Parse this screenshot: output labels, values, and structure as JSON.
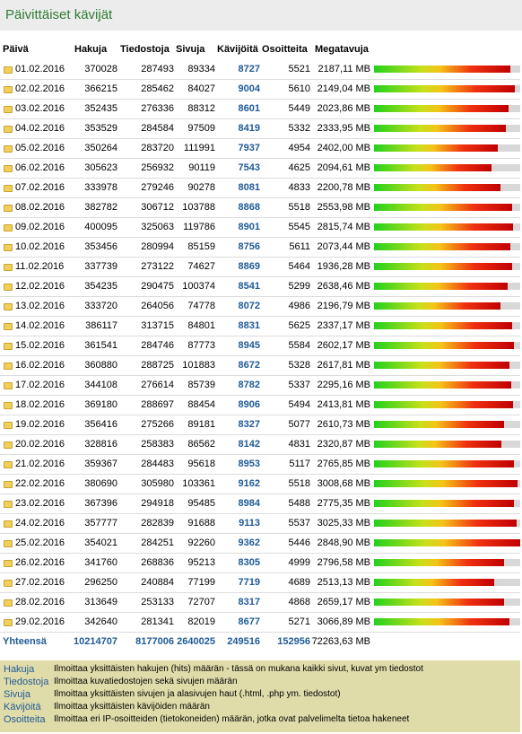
{
  "title": "Päivittäiset kävijät",
  "table": {
    "header": [
      "Päivä",
      "Hakuja",
      "Tiedostoja",
      "Sivuja",
      "Kävijöitä",
      "Osoitteita",
      "Megatavuja"
    ],
    "rows": [
      [
        "01.02.2016",
        370028,
        287493,
        89334,
        8727,
        5521,
        "2187,11 MB"
      ],
      [
        "02.02.2016",
        366215,
        285462,
        84027,
        9004,
        5610,
        "2149,04 MB"
      ],
      [
        "03.02.2016",
        352435,
        276336,
        88312,
        8601,
        5449,
        "2023,86 MB"
      ],
      [
        "04.02.2016",
        353529,
        284584,
        97509,
        8419,
        5332,
        "2333,95 MB"
      ],
      [
        "05.02.2016",
        350264,
        283720,
        111991,
        7937,
        4954,
        "2402,00 MB"
      ],
      [
        "06.02.2016",
        305623,
        256932,
        90119,
        7543,
        4625,
        "2094,61 MB"
      ],
      [
        "07.02.2016",
        333978,
        279246,
        90278,
        8081,
        4833,
        "2200,78 MB"
      ],
      [
        "08.02.2016",
        382782,
        306712,
        103788,
        8868,
        5518,
        "2553,98 MB"
      ],
      [
        "09.02.2016",
        400095,
        325063,
        119786,
        8901,
        5545,
        "2815,74 MB"
      ],
      [
        "10.02.2016",
        353456,
        280994,
        85159,
        8756,
        5611,
        "2073,44 MB"
      ],
      [
        "11.02.2016",
        337739,
        273122,
        74627,
        8869,
        5464,
        "1936,28 MB"
      ],
      [
        "12.02.2016",
        354235,
        290475,
        100374,
        8541,
        5299,
        "2638,46 MB"
      ],
      [
        "13.02.2016",
        333720,
        264056,
        74778,
        8072,
        4986,
        "2196,79 MB"
      ],
      [
        "14.02.2016",
        386117,
        313715,
        84801,
        8831,
        5625,
        "2337,17 MB"
      ],
      [
        "15.02.2016",
        361541,
        284746,
        87773,
        8945,
        5584,
        "2602,17 MB"
      ],
      [
        "16.02.2016",
        360880,
        288725,
        101883,
        8672,
        5328,
        "2617,81 MB"
      ],
      [
        "17.02.2016",
        344108,
        276614,
        85739,
        8782,
        5337,
        "2295,16 MB"
      ],
      [
        "18.02.2016",
        369180,
        288697,
        88454,
        8906,
        5494,
        "2413,81 MB"
      ],
      [
        "19.02.2016",
        356416,
        275266,
        89181,
        8327,
        5077,
        "2610,73 MB"
      ],
      [
        "20.02.2016",
        328816,
        258383,
        86562,
        8142,
        4831,
        "2320,87 MB"
      ],
      [
        "21.02.2016",
        359367,
        284483,
        95618,
        8953,
        5117,
        "2765,85 MB"
      ],
      [
        "22.02.2016",
        380690,
        305980,
        103361,
        9162,
        5518,
        "3008,68 MB"
      ],
      [
        "23.02.2016",
        367396,
        294918,
        95485,
        8984,
        5488,
        "2775,35 MB"
      ],
      [
        "24.02.2016",
        357777,
        282839,
        91688,
        9113,
        5537,
        "3025,33 MB"
      ],
      [
        "25.02.2016",
        354021,
        284251,
        92260,
        9362,
        5446,
        "2848,90 MB"
      ],
      [
        "26.02.2016",
        341760,
        268836,
        95213,
        8305,
        4999,
        "2796,58 MB"
      ],
      [
        "27.02.2016",
        296250,
        240884,
        77199,
        7719,
        4689,
        "2513,13 MB"
      ],
      [
        "28.02.2016",
        313649,
        253133,
        72707,
        8317,
        4868,
        "2659,17 MB"
      ],
      [
        "29.02.2016",
        342640,
        281341,
        82019,
        8677,
        5271,
        "3066,89 MB"
      ]
    ],
    "total": [
      "Yhteensä",
      10214707,
      8177006,
      2640025,
      249516,
      152956,
      "72263,63 MB"
    ]
  },
  "legend": [
    [
      "Hakuja",
      "Ilmoittaa yksittäisten hakujen (hits) määrän - tässä on mukana kaikki sivut, kuvat ym tiedostot"
    ],
    [
      "Tiedostoja",
      "Ilmoittaa kuvatiedostojen sekä sivujen määrän"
    ],
    [
      "Sivuja",
      "Ilmoittaa yksittäisten sivujen ja alasivujen haut (.html, .php ym. tiedostot)"
    ],
    [
      "Kävijöitä",
      "Ilmoittaa yksittäisten kävijöiden määrän"
    ],
    [
      "Osoitteita",
      "Ilmoittaa eri IP-osoitteiden (tietokoneiden) määrän, jotka ovat palvelimelta tietoa hakeneet"
    ]
  ]
}
